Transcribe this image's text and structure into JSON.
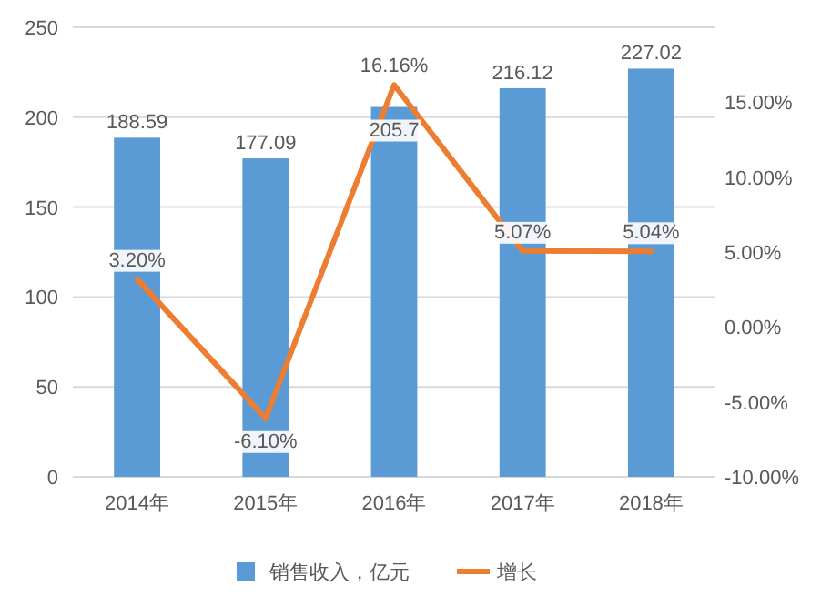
{
  "chart_data": {
    "type": "bar",
    "categories": [
      "2014年",
      "2015年",
      "2016年",
      "2017年",
      "2018年"
    ],
    "series": [
      {
        "name": "销售收入，亿元",
        "color": "#5b9bd5",
        "values": [
          188.59,
          177.09,
          205.7,
          216.12,
          227.02
        ],
        "data_labels": true
      },
      {
        "name": "增长",
        "type": "line",
        "axis": "y2",
        "color": "#ed7d31",
        "values": [
          3.2,
          -6.1,
          16.16,
          5.07,
          5.04
        ],
        "value_labels": [
          "3.20%",
          "-6.10%",
          "16.16%",
          "5.07%",
          "5.04%"
        ],
        "marker": "none"
      }
    ],
    "ylim": [
      0,
      250
    ],
    "yticks": [
      0,
      50,
      100,
      150,
      200,
      250
    ],
    "y2lim": [
      -10,
      20
    ],
    "y2ticks": [
      {
        "value": -10,
        "label": "-10.00%"
      },
      {
        "value": -5,
        "label": "-5.00%"
      },
      {
        "value": 0,
        "label": "0.00%"
      },
      {
        "value": 5,
        "label": "5.00%"
      },
      {
        "value": 10,
        "label": "10.00%"
      },
      {
        "value": 15,
        "label": "15.00%"
      }
    ],
    "grid": "y",
    "legend": "bottom"
  }
}
